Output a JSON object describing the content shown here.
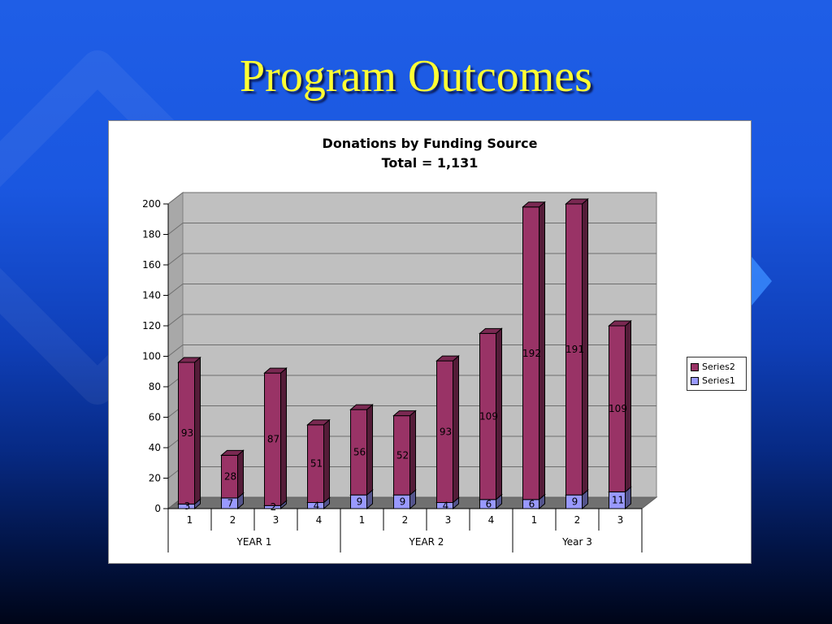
{
  "slide": {
    "title": "Program Outcomes",
    "background_color": "#1a57e0",
    "title_color": "#ffff33"
  },
  "chart_data": {
    "type": "bar",
    "stacked": true,
    "three_d": true,
    "title": "Donations by Funding Source",
    "subtitle": "Total = 1,131",
    "categories": [
      "1",
      "2",
      "3",
      "4",
      "1",
      "2",
      "3",
      "4",
      "1",
      "2",
      "3"
    ],
    "groups": [
      {
        "label": "YEAR 1",
        "count": 4
      },
      {
        "label": "YEAR 2",
        "count": 4
      },
      {
        "label": "Year 3",
        "count": 3
      }
    ],
    "series": [
      {
        "name": "Series1",
        "color": "#9999ff",
        "values": [
          3,
          7,
          2,
          4,
          9,
          9,
          4,
          6,
          6,
          9,
          11
        ]
      },
      {
        "name": "Series2",
        "color": "#993366",
        "values": [
          93,
          28,
          87,
          51,
          56,
          52,
          93,
          109,
          192,
          191,
          109
        ]
      }
    ],
    "ylim": [
      0,
      200
    ],
    "y_ticks": [
      "0",
      "20",
      "40",
      "60",
      "80",
      "100",
      "120",
      "140",
      "160",
      "180",
      "200"
    ],
    "grid": true,
    "plot_background": "#c0c0c0",
    "legend_position": "right",
    "legend_entries": [
      "Series2",
      "Series1"
    ]
  }
}
